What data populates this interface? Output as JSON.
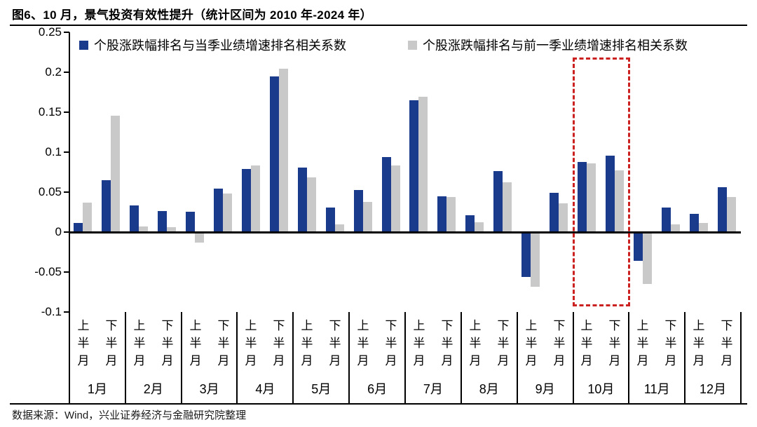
{
  "title": "图6、10 月，景气投资有效性提升（统计区间为 2010 年-2024 年）",
  "source": "数据来源：Wind，兴业证券经济与金融研究院整理",
  "colors": {
    "blue": "#1a3a8c",
    "gray": "#c9c9c9",
    "highlight_red": "#cb2120"
  },
  "legend": [
    {
      "label": "个股涨跌幅排名与当季业绩增速排名相关系数",
      "color": "#1a3a8c"
    },
    {
      "label": "个股涨跌幅排名与前一季业绩增速排名相关系数",
      "color": "#c9c9c9"
    }
  ],
  "chart_data": {
    "type": "bar",
    "months": [
      "1月",
      "2月",
      "3月",
      "4月",
      "5月",
      "6月",
      "7月",
      "8月",
      "9月",
      "10月",
      "11月",
      "12月"
    ],
    "half_labels": [
      "上半月",
      "下半月"
    ],
    "series": [
      {
        "name": "个股涨跌幅排名与当季业绩增速排名相关系数",
        "color": "#1a3a8c",
        "values": [
          0.011,
          0.065,
          0.033,
          0.026,
          0.025,
          0.054,
          0.079,
          0.195,
          0.081,
          0.031,
          0.053,
          0.094,
          0.165,
          0.045,
          0.021,
          0.076,
          -0.056,
          0.049,
          0.088,
          0.096,
          -0.036,
          0.031,
          0.023,
          0.056
        ]
      },
      {
        "name": "个股涨跌幅排名与前一季业绩增速排名相关系数",
        "color": "#c9c9c9",
        "values": [
          0.037,
          0.146,
          0.007,
          0.006,
          -0.013,
          0.048,
          0.083,
          0.204,
          0.068,
          0.01,
          0.038,
          0.083,
          0.169,
          0.044,
          0.012,
          0.062,
          -0.068,
          0.036,
          0.086,
          0.077,
          -0.065,
          0.01,
          0.011,
          0.044
        ]
      }
    ],
    "yticks": [
      "0.25",
      "0.2",
      "0.15",
      "0.1",
      "0.05",
      "0",
      "-0.05",
      "-0.1"
    ],
    "ytick_values": [
      0.25,
      0.2,
      0.15,
      0.1,
      0.05,
      0,
      -0.05,
      -0.1
    ],
    "ylim": [
      -0.1,
      0.25
    ],
    "grid": false,
    "legend_position": "top-inside",
    "highlight_month": "10月"
  }
}
